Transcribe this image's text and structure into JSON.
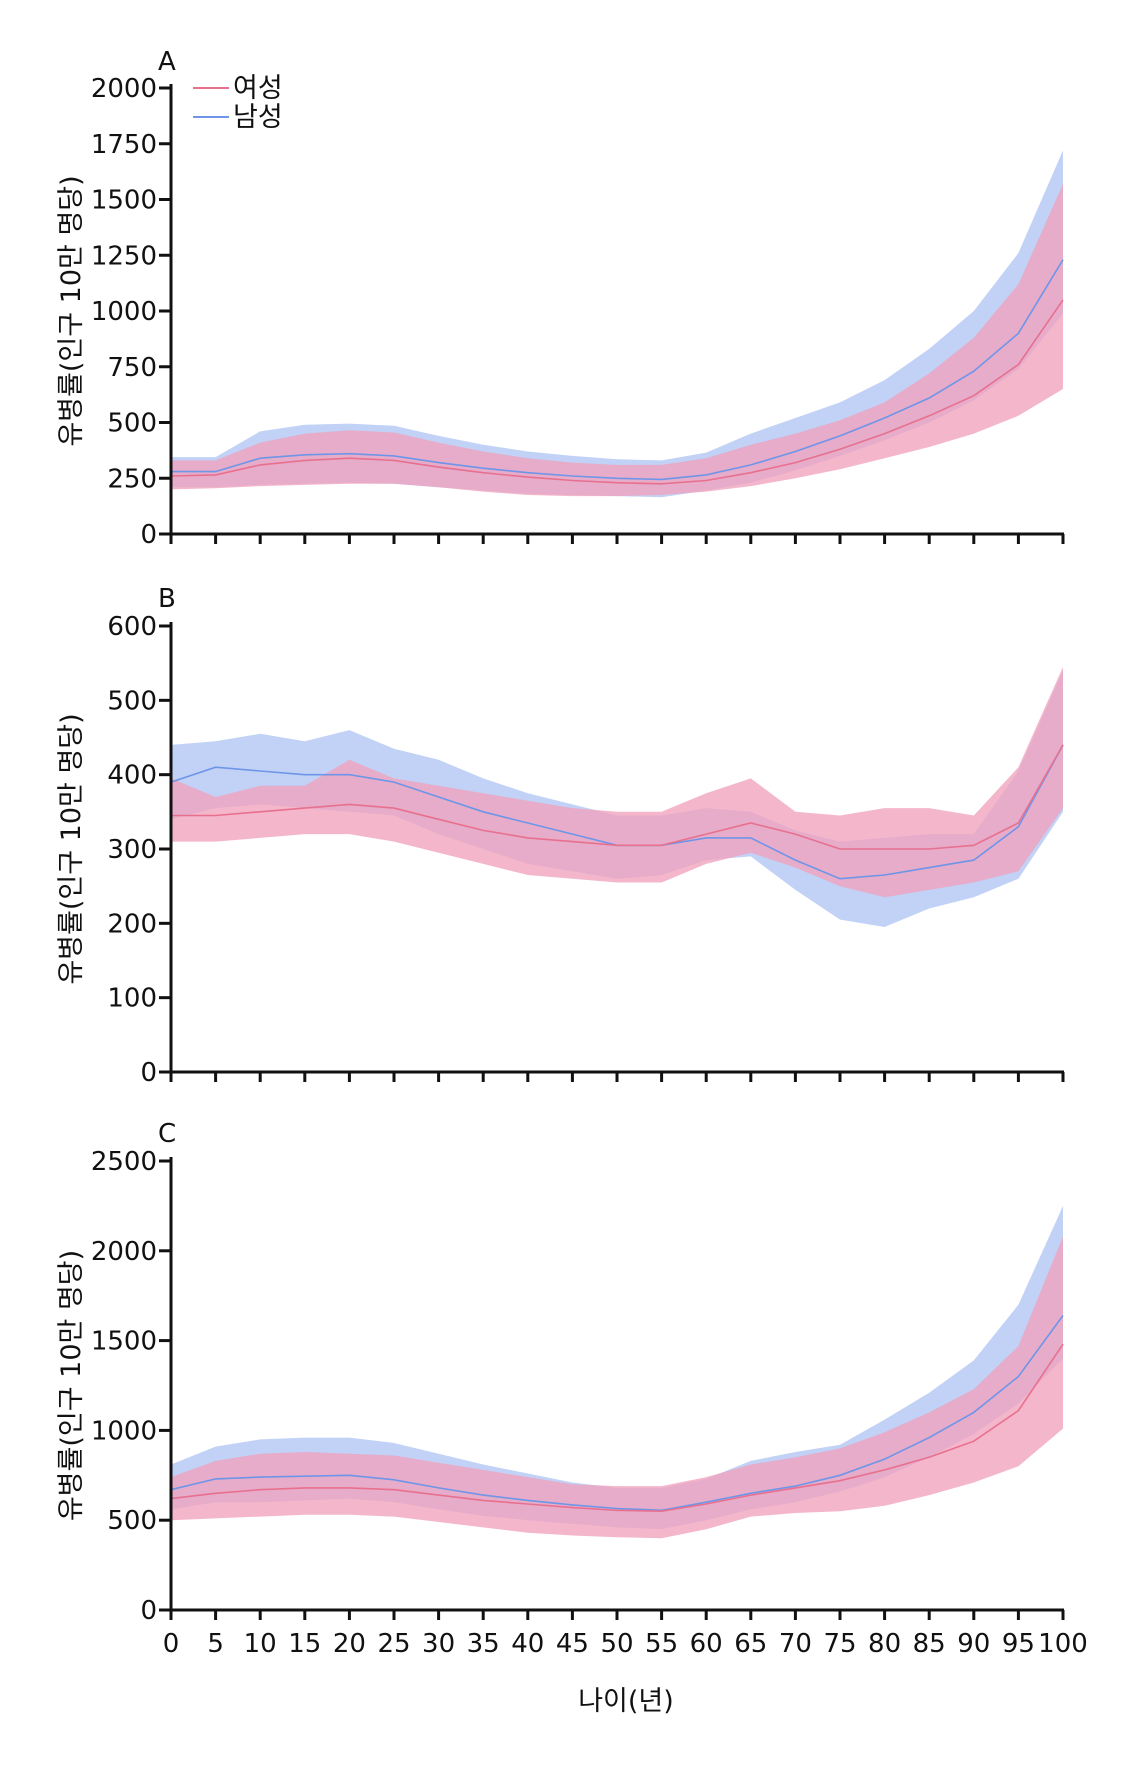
{
  "legend": {
    "female_label": "여성",
    "male_label": "남성"
  },
  "colors": {
    "female_line": "#e8708f",
    "female_band": "#f1a1bc",
    "male_line": "#6f95e8",
    "male_band": "#a9c1f2",
    "axis": "#111111"
  },
  "xlabel": "나이(년)",
  "chart_data": [
    {
      "panel": "A",
      "type": "line",
      "ylabel": "유병률(인구 10만 명당)",
      "ylim": [
        0,
        2000
      ],
      "yticks": [
        0,
        250,
        500,
        750,
        1000,
        1250,
        1500,
        1750,
        2000
      ],
      "ytick_labels": [
        "0",
        "250",
        "500",
        "750",
        "1000",
        "1250",
        "1500",
        "1750",
        "2000"
      ],
      "xlim": [
        0,
        100
      ],
      "xticks": [
        0,
        5,
        10,
        15,
        20,
        25,
        30,
        35,
        40,
        45,
        50,
        55,
        60,
        65,
        70,
        75,
        80,
        85,
        90,
        95,
        100
      ],
      "series": [
        {
          "name": "여성",
          "x": [
            0,
            5,
            10,
            15,
            20,
            25,
            30,
            35,
            40,
            45,
            50,
            55,
            60,
            65,
            70,
            75,
            80,
            85,
            90,
            95,
            100
          ],
          "values": [
            260,
            265,
            310,
            330,
            340,
            330,
            300,
            275,
            255,
            240,
            230,
            225,
            240,
            275,
            320,
            380,
            450,
            530,
            620,
            760,
            1050
          ],
          "lower": [
            200,
            205,
            215,
            220,
            225,
            225,
            210,
            190,
            175,
            170,
            170,
            175,
            190,
            215,
            250,
            290,
            340,
            390,
            450,
            530,
            650
          ],
          "upper": [
            330,
            330,
            410,
            450,
            465,
            455,
            410,
            370,
            340,
            320,
            310,
            310,
            340,
            400,
            450,
            510,
            590,
            720,
            880,
            1120,
            1570
          ]
        },
        {
          "name": "남성",
          "x": [
            0,
            5,
            10,
            15,
            20,
            25,
            30,
            35,
            40,
            45,
            50,
            55,
            60,
            65,
            70,
            75,
            80,
            85,
            90,
            95,
            100
          ],
          "values": [
            280,
            280,
            340,
            355,
            360,
            350,
            320,
            295,
            275,
            260,
            250,
            245,
            265,
            310,
            370,
            440,
            520,
            610,
            730,
            900,
            1230
          ],
          "lower": [
            210,
            210,
            220,
            225,
            230,
            225,
            210,
            195,
            180,
            175,
            170,
            165,
            195,
            230,
            285,
            350,
            420,
            500,
            600,
            740,
            990
          ],
          "upper": [
            345,
            345,
            460,
            490,
            495,
            485,
            440,
            400,
            370,
            350,
            335,
            330,
            365,
            450,
            520,
            590,
            690,
            830,
            1000,
            1260,
            1720
          ]
        }
      ]
    },
    {
      "panel": "B",
      "type": "line",
      "ylabel": "유병률(인구 10만 명당)",
      "ylim": [
        0,
        600
      ],
      "yticks": [
        0,
        100,
        200,
        300,
        400,
        500,
        600
      ],
      "ytick_labels": [
        "0",
        "100",
        "200",
        "300",
        "400",
        "500",
        "600"
      ],
      "xlim": [
        0,
        100
      ],
      "xticks": [
        0,
        5,
        10,
        15,
        20,
        25,
        30,
        35,
        40,
        45,
        50,
        55,
        60,
        65,
        70,
        75,
        80,
        85,
        90,
        95,
        100
      ],
      "series": [
        {
          "name": "여성",
          "x": [
            0,
            5,
            10,
            15,
            20,
            25,
            30,
            35,
            40,
            45,
            50,
            55,
            60,
            65,
            70,
            75,
            80,
            85,
            90,
            95,
            100
          ],
          "values": [
            345,
            345,
            350,
            355,
            360,
            355,
            340,
            325,
            315,
            310,
            305,
            305,
            320,
            335,
            320,
            300,
            300,
            300,
            305,
            335,
            440
          ],
          "lower": [
            310,
            310,
            315,
            320,
            320,
            310,
            295,
            280,
            265,
            260,
            255,
            255,
            280,
            295,
            275,
            250,
            235,
            245,
            255,
            270,
            355
          ],
          "upper": [
            395,
            370,
            385,
            385,
            420,
            395,
            385,
            375,
            365,
            355,
            350,
            350,
            375,
            395,
            350,
            345,
            355,
            355,
            345,
            410,
            545
          ]
        },
        {
          "name": "남성",
          "x": [
            0,
            5,
            10,
            15,
            20,
            25,
            30,
            35,
            40,
            45,
            50,
            55,
            60,
            65,
            70,
            75,
            80,
            85,
            90,
            95,
            100
          ],
          "values": [
            390,
            410,
            405,
            400,
            400,
            390,
            370,
            350,
            335,
            320,
            305,
            305,
            315,
            315,
            285,
            260,
            265,
            275,
            285,
            330,
            440
          ],
          "lower": [
            340,
            355,
            360,
            355,
            350,
            345,
            320,
            300,
            280,
            270,
            260,
            265,
            285,
            290,
            245,
            205,
            195,
            220,
            235,
            260,
            350
          ],
          "upper": [
            440,
            445,
            455,
            445,
            460,
            435,
            420,
            395,
            375,
            360,
            345,
            345,
            355,
            350,
            325,
            310,
            315,
            320,
            320,
            405,
            540
          ]
        }
      ]
    },
    {
      "panel": "C",
      "type": "line",
      "ylabel": "유병률(인구 10만 명당)",
      "ylim": [
        0,
        2500
      ],
      "yticks": [
        0,
        500,
        1000,
        1500,
        2000,
        2500
      ],
      "ytick_labels": [
        "0",
        "500",
        "1000",
        "1500",
        "2000",
        "2500"
      ],
      "xlim": [
        0,
        100
      ],
      "xticks": [
        0,
        5,
        10,
        15,
        20,
        25,
        30,
        35,
        40,
        45,
        50,
        55,
        60,
        65,
        70,
        75,
        80,
        85,
        90,
        95,
        100
      ],
      "xtick_labels": [
        "0",
        "5",
        "10",
        "15",
        "20",
        "25",
        "30",
        "35",
        "40",
        "45",
        "50",
        "55",
        "60",
        "65",
        "70",
        "75",
        "80",
        "85",
        "90",
        "95",
        "100"
      ],
      "series": [
        {
          "name": "여성",
          "x": [
            0,
            5,
            10,
            15,
            20,
            25,
            30,
            35,
            40,
            45,
            50,
            55,
            60,
            65,
            70,
            75,
            80,
            85,
            90,
            95,
            100
          ],
          "values": [
            620,
            650,
            670,
            680,
            680,
            670,
            640,
            610,
            590,
            570,
            555,
            550,
            590,
            640,
            680,
            720,
            780,
            850,
            940,
            1110,
            1480
          ],
          "lower": [
            500,
            510,
            520,
            530,
            530,
            520,
            490,
            460,
            430,
            415,
            405,
            400,
            450,
            520,
            540,
            550,
            580,
            640,
            710,
            800,
            1010
          ],
          "upper": [
            740,
            830,
            870,
            880,
            870,
            860,
            820,
            780,
            740,
            700,
            690,
            690,
            740,
            810,
            850,
            900,
            990,
            1100,
            1230,
            1470,
            2080
          ]
        },
        {
          "name": "남성",
          "x": [
            0,
            5,
            10,
            15,
            20,
            25,
            30,
            35,
            40,
            45,
            50,
            55,
            60,
            65,
            70,
            75,
            80,
            85,
            90,
            95,
            100
          ],
          "values": [
            670,
            730,
            740,
            745,
            750,
            725,
            680,
            640,
            610,
            585,
            565,
            555,
            600,
            650,
            690,
            750,
            840,
            960,
            1100,
            1300,
            1640
          ],
          "lower": [
            560,
            600,
            600,
            610,
            620,
            600,
            560,
            525,
            500,
            480,
            460,
            450,
            500,
            560,
            600,
            660,
            740,
            850,
            980,
            1150,
            1400
          ],
          "upper": [
            810,
            910,
            950,
            960,
            960,
            930,
            870,
            810,
            760,
            710,
            680,
            680,
            730,
            830,
            880,
            920,
            1060,
            1210,
            1390,
            1700,
            2250
          ]
        }
      ]
    }
  ]
}
